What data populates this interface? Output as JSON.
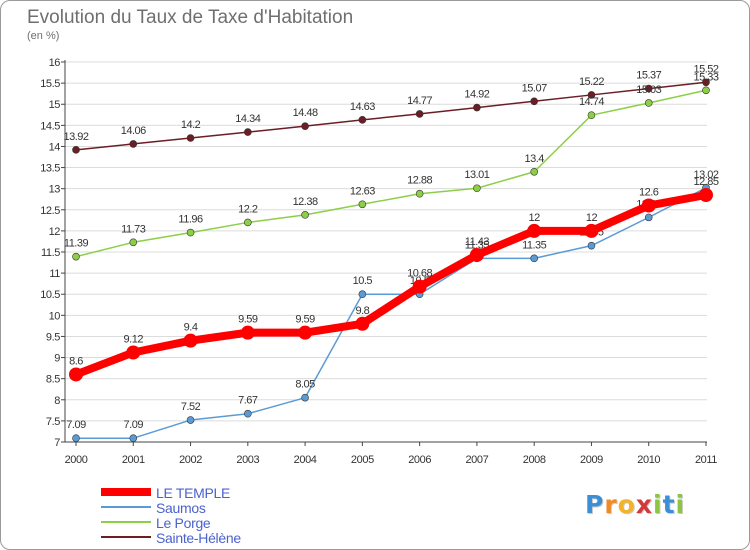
{
  "title": "Evolution du Taux de Taxe d'Habitation",
  "subtitle": "(en %)",
  "logo": {
    "letters": [
      "P",
      "r",
      "o",
      "x",
      "i",
      "t",
      "i"
    ],
    "colors": [
      "#3a8fd6",
      "#f08a24",
      "#f2b22a",
      "#d23a3a",
      "#8cc63f",
      "#3a8fd6",
      "#8cc63f"
    ]
  },
  "chart_data": {
    "type": "line",
    "x": [
      "2000",
      "2001",
      "2002",
      "2003",
      "2004",
      "2005",
      "2006",
      "2007",
      "2008",
      "2009",
      "2010",
      "2011"
    ],
    "y_ticks": [
      "7",
      "7.5",
      "8",
      "8.5",
      "9",
      "9.5",
      "10",
      "10.5",
      "11",
      "11.5",
      "12",
      "12.5",
      "13",
      "13.5",
      "14",
      "14.5",
      "15",
      "15.5",
      "16"
    ],
    "ylim": [
      7,
      16
    ],
    "legend_position": "bottom-left",
    "series": [
      {
        "name": "Sainte-Hélène",
        "color": "#6b1e24",
        "values": [
          13.92,
          14.06,
          14.2,
          14.34,
          14.48,
          14.63,
          14.77,
          14.92,
          15.07,
          15.22,
          15.37,
          15.52
        ],
        "labels": [
          "13.92",
          "14.06",
          "14.2",
          "14.34",
          "14.48",
          "14.63",
          "14.77",
          "14.92",
          "15.07",
          "15.22",
          "15.37",
          "15.52"
        ]
      },
      {
        "name": "Le Porge",
        "color": "#8ccf47",
        "values": [
          11.39,
          11.73,
          11.96,
          12.2,
          12.38,
          12.63,
          12.88,
          13.01,
          13.4,
          14.74,
          15.03,
          15.33
        ],
        "labels": [
          "11.39",
          "11.73",
          "11.96",
          "12.2",
          "12.38",
          "12.63",
          "12.88",
          "13.01",
          "13.4",
          "14.74",
          "15.03",
          "15.33"
        ]
      },
      {
        "name": "Saumos",
        "color": "#5b9bd5",
        "values": [
          7.09,
          7.09,
          7.52,
          7.67,
          8.05,
          10.5,
          10.5,
          11.35,
          11.35,
          11.65,
          12.32,
          13.02
        ],
        "labels": [
          "7.09",
          "7.09",
          "7.52",
          "7.67",
          "8.05",
          "10.5",
          "10.5",
          "11.35",
          "11.35",
          "11.65",
          "12.32",
          "13.02"
        ]
      },
      {
        "name": "LE TEMPLE",
        "color": "#ff0000",
        "values": [
          8.6,
          9.12,
          9.4,
          9.59,
          9.59,
          9.8,
          10.68,
          11.43,
          12,
          12,
          12.6,
          12.85
        ],
        "labels": [
          "8.6",
          "9.12",
          "9.4",
          "9.59",
          "9.59",
          "9.8",
          "10.68",
          "11.43",
          "12",
          "12",
          "12.6",
          "12.85"
        ]
      }
    ],
    "legend": [
      {
        "name": "LE TEMPLE",
        "color": "#ff0000",
        "thick": true
      },
      {
        "name": "Saumos",
        "color": "#5b9bd5",
        "thick": false
      },
      {
        "name": "Le Porge",
        "color": "#8ccf47",
        "thick": false
      },
      {
        "name": "Sainte-Hélène",
        "color": "#6b1e24",
        "thick": false
      }
    ]
  }
}
